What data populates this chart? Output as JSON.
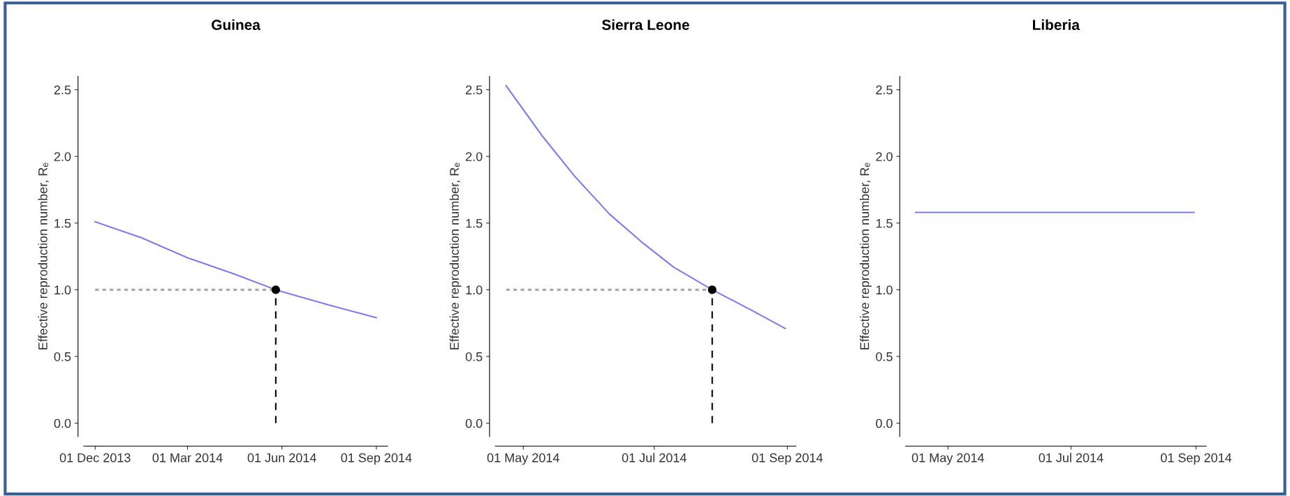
{
  "chart_data": [
    {
      "type": "line",
      "title": "Guinea",
      "ylabel": "Effective reproduction number, Rₑ",
      "ylim": [
        -0.1,
        2.6
      ],
      "yticks": [
        {
          "value": 0,
          "label": "0.0"
        },
        0.5,
        {
          "value": 1,
          "label": "1.0"
        },
        1.5,
        {
          "value": 2,
          "label": "2.0"
        },
        2.5
      ],
      "xlim": [
        "2013-11-20",
        "2014-09-12"
      ],
      "xticks": [
        {
          "value": "2013-12-01",
          "label": "01 Dec 2013"
        },
        {
          "value": "2014-03-01",
          "label": "01 Mar 2014"
        },
        {
          "value": "2014-06-01",
          "label": "01 Jun 2014"
        },
        {
          "value": "2014-09-01",
          "label": "01 Sep 2014"
        }
      ],
      "grid": false,
      "series": [
        {
          "color": "#7b7bf0",
          "line_style": "solid",
          "x": [
            "2013-12-01",
            "2014-01-15",
            "2014-03-01",
            "2014-04-15",
            "2014-05-26",
            "2014-07-15",
            "2014-09-01"
          ],
          "values": [
            1.51,
            1.39,
            1.24,
            1.12,
            1.0,
            0.89,
            0.79
          ]
        },
        {
          "color": "#aaaaaa",
          "line_style": "dotted",
          "x": [
            "2013-12-01",
            "2014-05-26"
          ],
          "values": [
            1.0,
            1.0
          ]
        },
        {
          "color": "#000000",
          "line_style": "dashed",
          "x": [
            "2014-05-26",
            "2014-05-26"
          ],
          "values": [
            0.0,
            1.0
          ]
        },
        {
          "type": "scatter",
          "color": "#000000",
          "marker": "circle",
          "x": [
            "2014-05-26"
          ],
          "values": [
            1.0
          ]
        }
      ]
    },
    {
      "type": "line",
      "title": "Sierra Leone",
      "ylabel": "Effective reproduction number, Rₑ",
      "ylim": [
        -0.1,
        2.6
      ],
      "yticks": [
        {
          "value": 0,
          "label": "0.0"
        },
        0.5,
        {
          "value": 1,
          "label": "1.0"
        },
        1.5,
        {
          "value": 2,
          "label": "2.0"
        },
        2.5
      ],
      "xlim": [
        "2014-04-18",
        "2014-09-05"
      ],
      "xticks": [
        {
          "value": "2014-05-01",
          "label": "01 May 2014"
        },
        {
          "value": "2014-07-01",
          "label": "01 Jul 2014"
        },
        {
          "value": "2014-09-01",
          "label": "01 Sep 2014"
        }
      ],
      "grid": false,
      "series": [
        {
          "color": "#7b7bf0",
          "line_style": "solid",
          "x": [
            "2014-04-23",
            "2014-05-10",
            "2014-05-25",
            "2014-06-10",
            "2014-06-25",
            "2014-07-10",
            "2014-07-28",
            "2014-08-15",
            "2014-08-31"
          ],
          "values": [
            2.53,
            2.15,
            1.85,
            1.57,
            1.36,
            1.17,
            1.0,
            0.85,
            0.71
          ]
        },
        {
          "color": "#aaaaaa",
          "line_style": "dotted",
          "x": [
            "2014-04-23",
            "2014-07-28"
          ],
          "values": [
            1.0,
            1.0
          ]
        },
        {
          "color": "#000000",
          "line_style": "dashed",
          "x": [
            "2014-07-28",
            "2014-07-28"
          ],
          "values": [
            0.0,
            1.0
          ]
        },
        {
          "type": "scatter",
          "color": "#000000",
          "marker": "circle",
          "x": [
            "2014-07-28"
          ],
          "values": [
            1.0
          ]
        }
      ]
    },
    {
      "type": "line",
      "title": "Liberia",
      "ylabel": "Effective reproduction number, Rₑ",
      "ylim": [
        -0.1,
        2.6
      ],
      "yticks": [
        {
          "value": 0,
          "label": "0.0"
        },
        0.5,
        {
          "value": 1,
          "label": "1.0"
        },
        1.5,
        {
          "value": 2,
          "label": "2.0"
        },
        2.5
      ],
      "xlim": [
        "2014-04-10",
        "2014-09-06"
      ],
      "xticks": [
        {
          "value": "2014-05-01",
          "label": "01 May 2014"
        },
        {
          "value": "2014-07-01",
          "label": "01 Jul 2014"
        },
        {
          "value": "2014-09-01",
          "label": "01 Sep 2014"
        }
      ],
      "grid": false,
      "series": [
        {
          "color": "#7b7bf0",
          "line_style": "solid",
          "x": [
            "2014-04-15",
            "2014-08-31"
          ],
          "values": [
            1.58,
            1.58
          ]
        }
      ]
    }
  ]
}
